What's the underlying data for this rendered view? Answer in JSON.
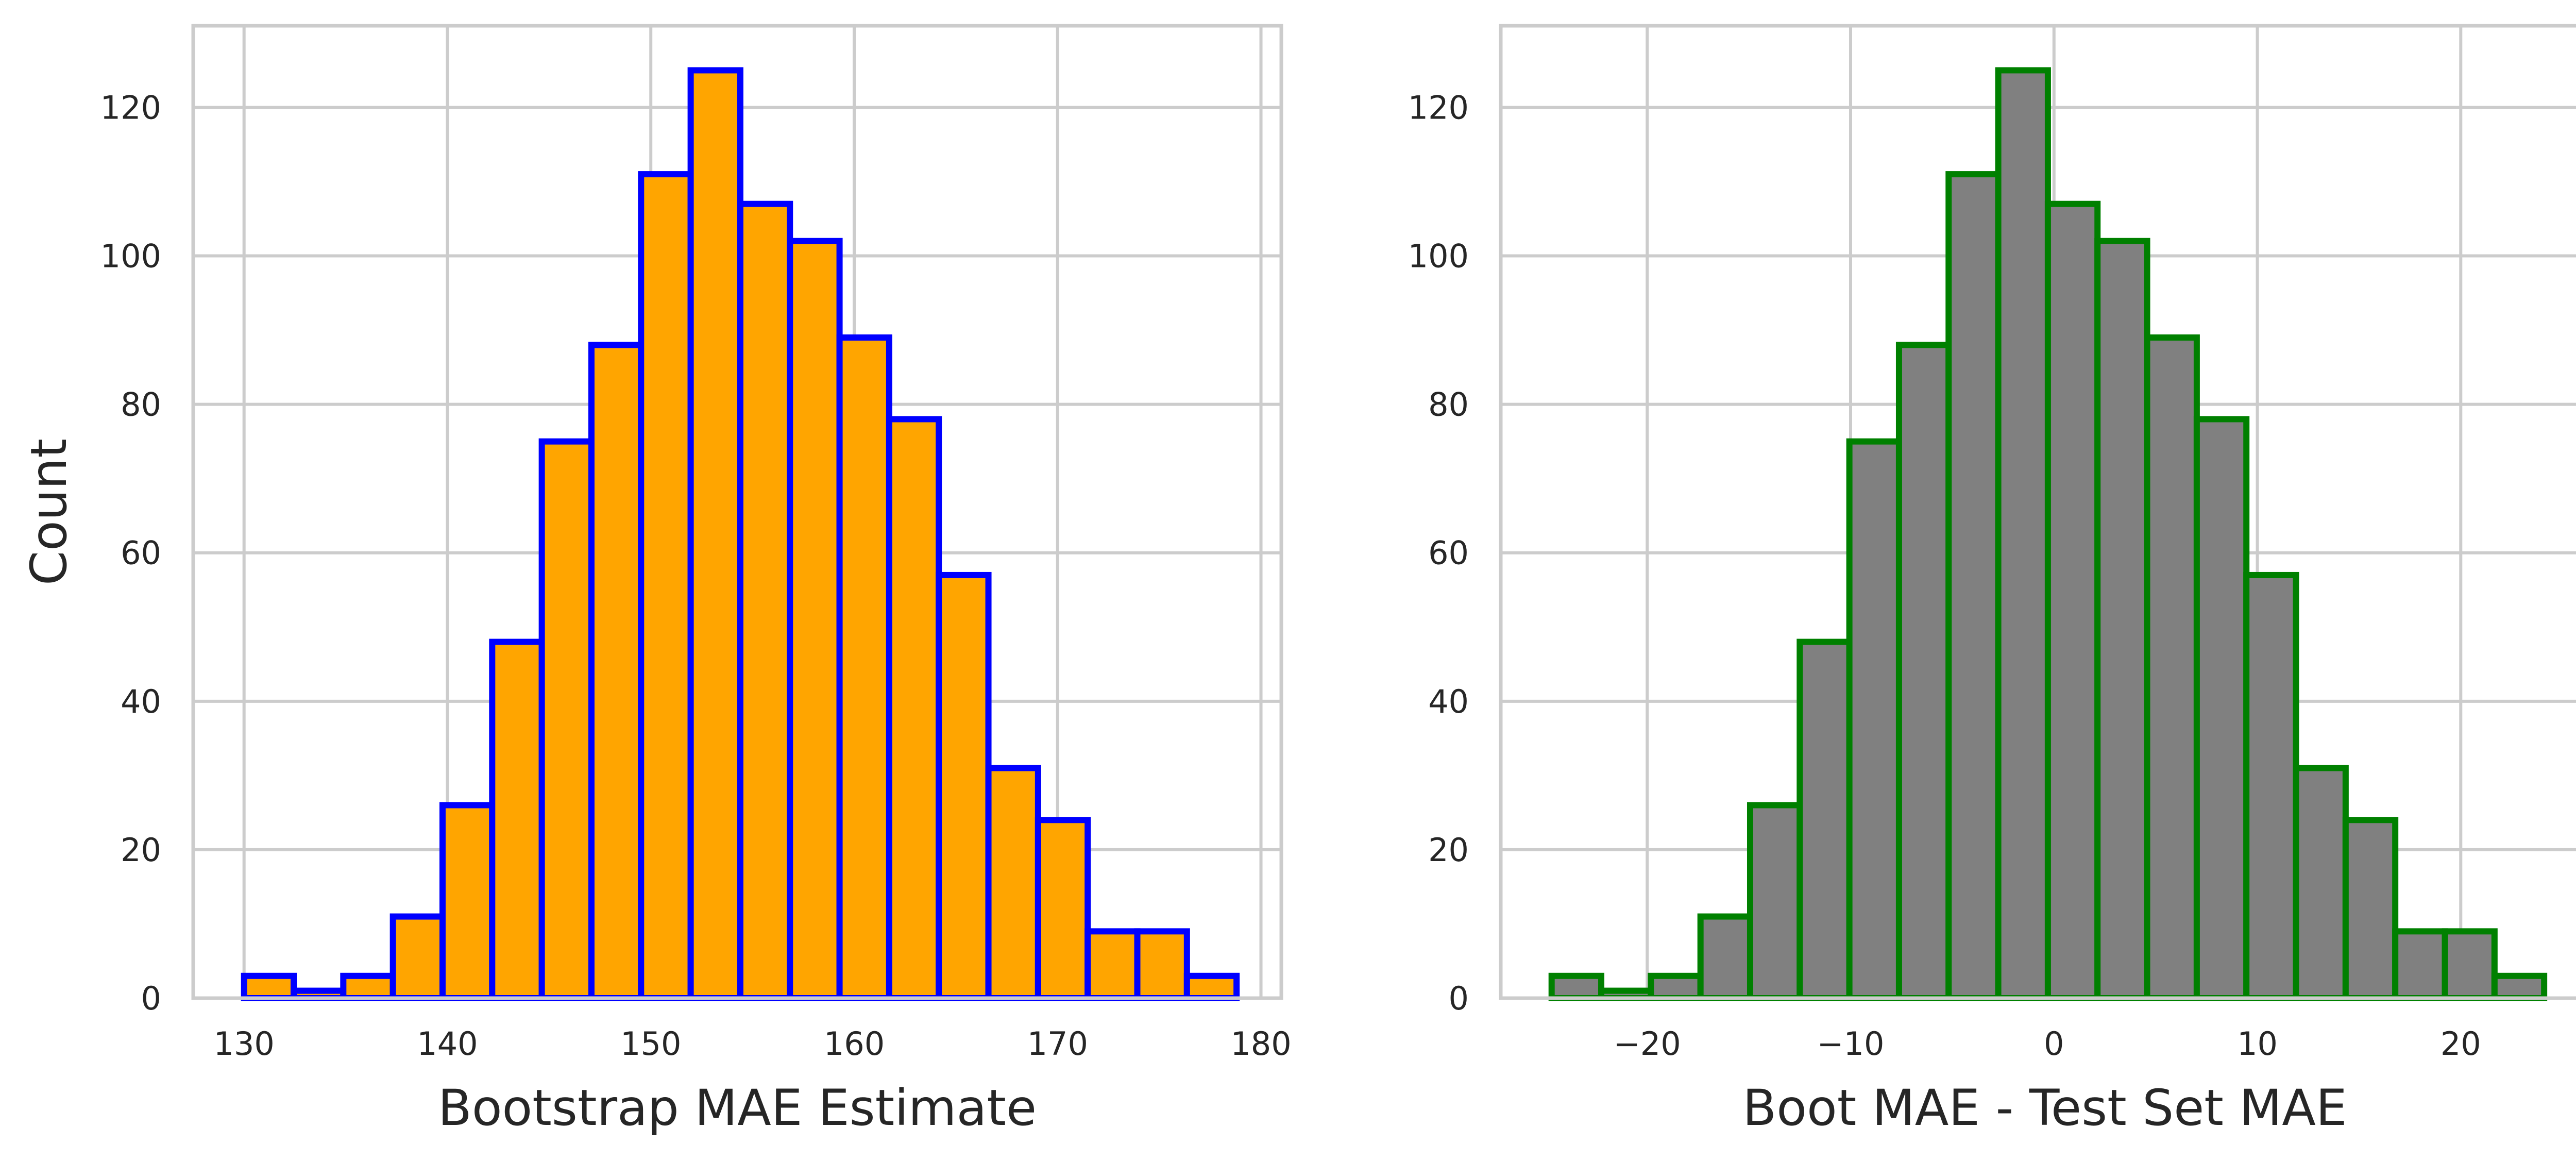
{
  "chart_data": [
    {
      "type": "bar",
      "chart_kind": "histogram",
      "xlabel": "Bootstrap MAE Estimate",
      "ylabel": "Count",
      "xlim": [
        127.5,
        181
      ],
      "ylim": [
        0,
        131
      ],
      "xticks": [
        130,
        140,
        150,
        160,
        170,
        180
      ],
      "xtick_labels": [
        "130",
        "140",
        "150",
        "160",
        "170",
        "180"
      ],
      "yticks": [
        0,
        20,
        40,
        60,
        80,
        100,
        120
      ],
      "ytick_labels": [
        "0",
        "20",
        "40",
        "60",
        "80",
        "100",
        "120"
      ],
      "grid": true,
      "fill_color": "#FFA500",
      "edge_color": "#0000FF",
      "bin_edges": [
        130.0,
        132.44,
        134.88,
        137.32,
        139.76,
        142.2,
        144.64,
        147.08,
        149.52,
        151.96,
        154.4,
        156.84,
        159.28,
        161.72,
        164.16,
        166.6,
        169.04,
        171.48,
        173.92,
        176.36,
        178.8
      ],
      "values": [
        3,
        1,
        3,
        11,
        26,
        48,
        75,
        88,
        111,
        125,
        107,
        102,
        89,
        78,
        57,
        31,
        24,
        9,
        9,
        3
      ]
    },
    {
      "type": "bar",
      "chart_kind": "histogram",
      "xlabel": "Boot MAE - Test Set MAE",
      "ylabel": "",
      "xlim": [
        -27.2,
        26.3
      ],
      "ylim": [
        0,
        131
      ],
      "xticks": [
        -20,
        -10,
        0,
        10,
        20
      ],
      "xtick_labels": [
        "−20",
        "−10",
        "0",
        "10",
        "20"
      ],
      "yticks": [
        0,
        20,
        40,
        60,
        80,
        100,
        120
      ],
      "ytick_labels": [
        "0",
        "20",
        "40",
        "60",
        "80",
        "100",
        "120"
      ],
      "grid": true,
      "fill_color": "#808080",
      "edge_color": "#008000",
      "bin_edges": [
        -24.7,
        -22.26,
        -19.82,
        -17.38,
        -14.94,
        -12.5,
        -10.06,
        -7.62,
        -5.18,
        -2.74,
        -0.3,
        2.14,
        4.58,
        7.02,
        9.46,
        11.9,
        14.34,
        16.78,
        19.22,
        21.66,
        24.1
      ],
      "values": [
        3,
        1,
        3,
        11,
        26,
        48,
        75,
        88,
        111,
        125,
        107,
        102,
        89,
        78,
        57,
        31,
        24,
        9,
        9,
        3
      ]
    }
  ]
}
